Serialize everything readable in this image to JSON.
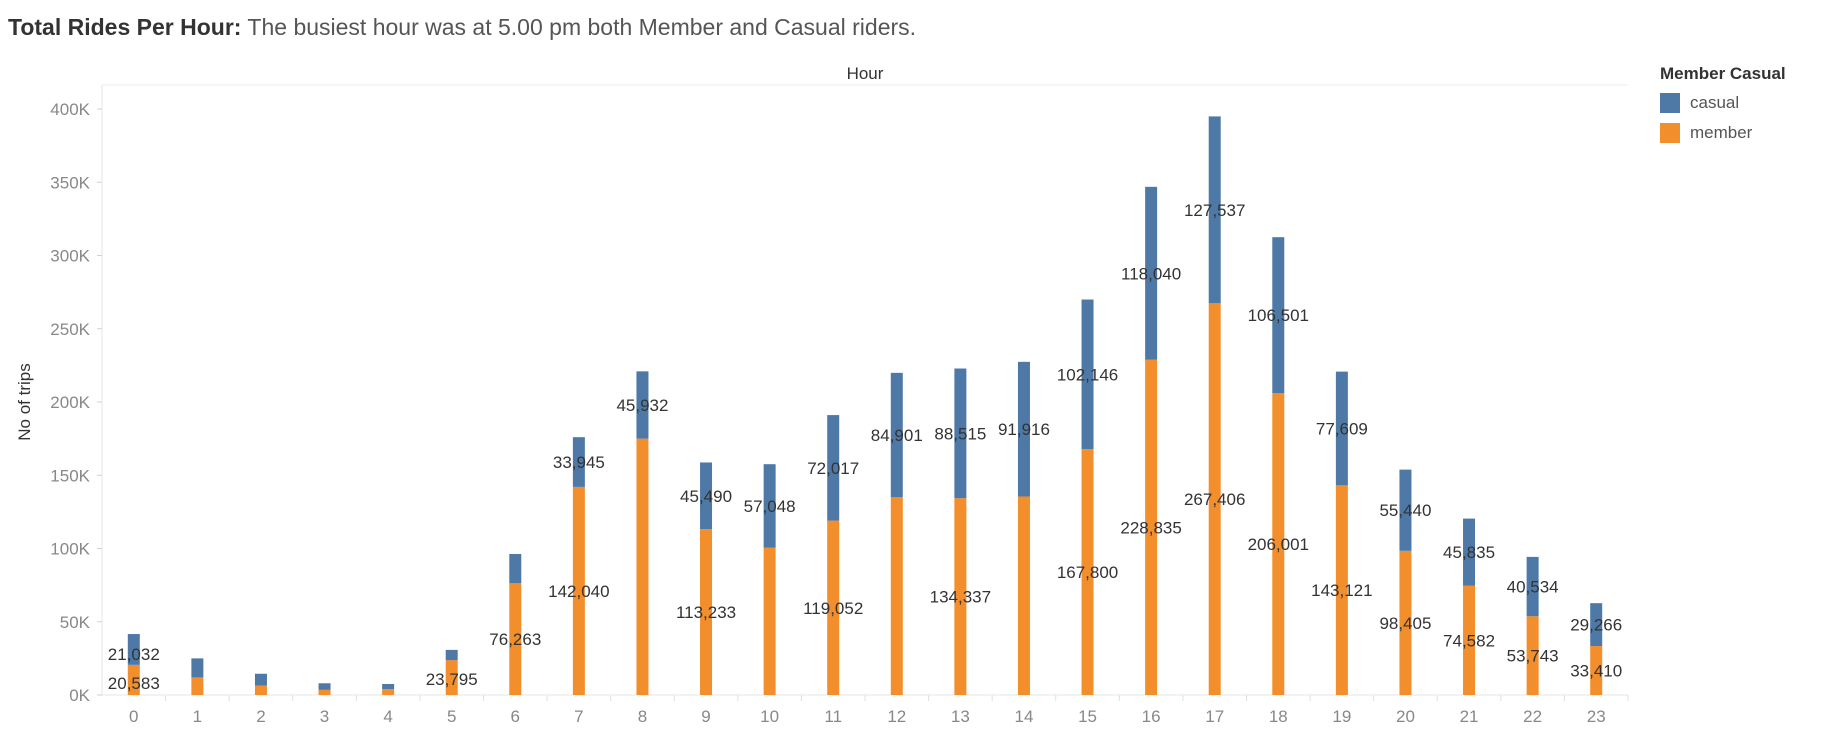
{
  "title": {
    "bold": "Total Rides Per Hour:",
    "text": "The busiest hour was at 5.00 pm both Member and Casual riders."
  },
  "colors": {
    "casual": "#4e79a7",
    "member": "#f28e2b"
  },
  "legend": {
    "title": "Member Casual",
    "items": [
      {
        "label": "casual",
        "color": "#4e79a7"
      },
      {
        "label": "member",
        "color": "#f28e2b"
      }
    ]
  },
  "chart_data": {
    "type": "bar",
    "stacked": true,
    "xlabel": "Hour",
    "ylabel": "No of trips",
    "ylim": [
      0,
      400000
    ],
    "yticks": [
      0,
      50000,
      100000,
      150000,
      200000,
      250000,
      300000,
      350000,
      400000
    ],
    "ytick_labels": [
      "0K",
      "50K",
      "100K",
      "150K",
      "200K",
      "250K",
      "300K",
      "350K",
      "400K"
    ],
    "categories": [
      "0",
      "1",
      "2",
      "3",
      "4",
      "5",
      "6",
      "7",
      "8",
      "9",
      "10",
      "11",
      "12",
      "13",
      "14",
      "15",
      "16",
      "17",
      "18",
      "19",
      "20",
      "21",
      "22",
      "23"
    ],
    "series": [
      {
        "name": "member",
        "values": [
          20583,
          12000,
          6500,
          3500,
          4000,
          23795,
          76263,
          142040,
          175000,
          113233,
          100500,
          119052,
          135000,
          134337,
          135500,
          167800,
          228835,
          267406,
          206001,
          143121,
          98405,
          74582,
          53743,
          33410
        ]
      },
      {
        "name": "casual",
        "values": [
          21032,
          13000,
          8000,
          4500,
          3500,
          7000,
          20000,
          33945,
          45932,
          45490,
          57048,
          72017,
          84901,
          88515,
          91916,
          102146,
          118040,
          127537,
          106501,
          77609,
          55440,
          45835,
          40534,
          29266
        ]
      }
    ],
    "data_labels": {
      "member": [
        "20,583",
        "",
        "",
        "",
        "",
        "23,795",
        "76,263",
        "142,040",
        "",
        "113,233",
        "",
        "119,052",
        "",
        "134,337",
        "",
        "167,800",
        "228,835",
        "267,406",
        "206,001",
        "143,121",
        "98,405",
        "74,582",
        "53,743",
        "33,410"
      ],
      "casual": [
        "21,032",
        "",
        "",
        "",
        "",
        "",
        "",
        "33,945",
        "45,932",
        "45,490",
        "57,048",
        "72,017",
        "84,901",
        "88,515",
        "91,916",
        "102,146",
        "118,040",
        "127,537",
        "106,501",
        "77,609",
        "55,440",
        "45,835",
        "40,534",
        "29,266"
      ]
    },
    "grid": false,
    "legend_position": "top-right"
  }
}
